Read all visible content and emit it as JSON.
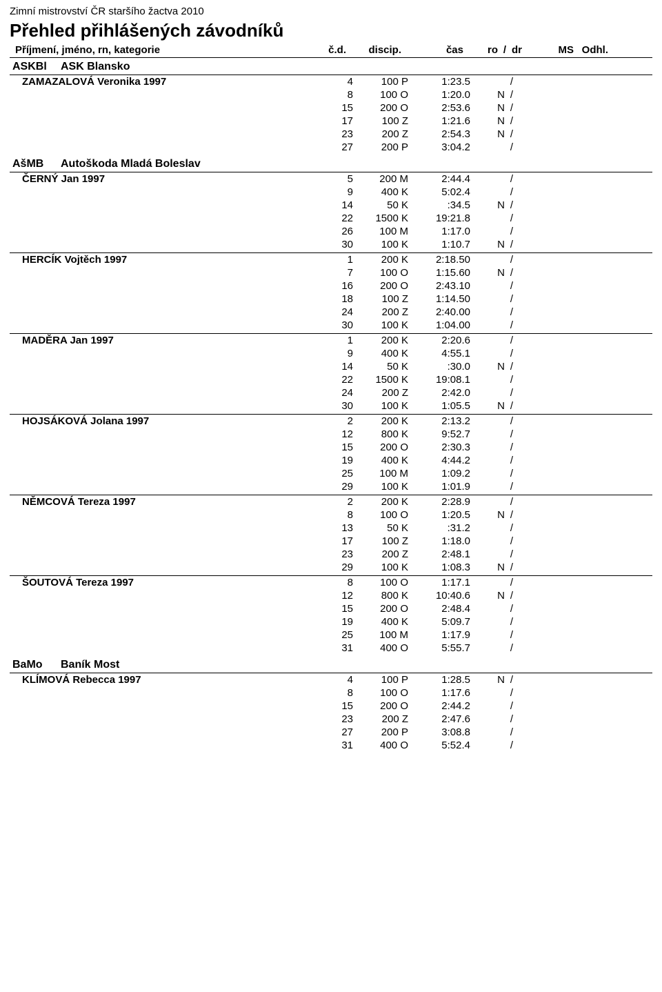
{
  "event_name": "Zimní mistrovství ČR staršího žactva 2010",
  "page_title": "Přehled přihlášených závodníků",
  "columns": {
    "name": "Příjmení, jméno, rn, kategorie",
    "cd": "č.d.",
    "discip": "discip.",
    "time": "čas",
    "ro": "ro",
    "slash": "/",
    "dr": "dr",
    "ms": "MS",
    "odhl": "Odhl."
  },
  "clubs": [
    {
      "code": "ASKBl",
      "name": "ASK Blansko",
      "athletes": [
        {
          "name": "ZAMAZALOVÁ Veronika 1997",
          "results": [
            {
              "cd": "4",
              "disc": "100 P",
              "time": "1:23.5",
              "ro": "",
              "dr": ""
            },
            {
              "cd": "8",
              "disc": "100 O",
              "time": "1:20.0",
              "ro": "N",
              "dr": ""
            },
            {
              "cd": "15",
              "disc": "200 O",
              "time": "2:53.6",
              "ro": "N",
              "dr": ""
            },
            {
              "cd": "17",
              "disc": "100 Z",
              "time": "1:21.6",
              "ro": "N",
              "dr": ""
            },
            {
              "cd": "23",
              "disc": "200 Z",
              "time": "2:54.3",
              "ro": "N",
              "dr": ""
            },
            {
              "cd": "27",
              "disc": "200 P",
              "time": "3:04.2",
              "ro": "",
              "dr": ""
            }
          ]
        }
      ]
    },
    {
      "code": "AšMB",
      "name": "Autoškoda Mladá Boleslav",
      "athletes": [
        {
          "name": "ČERNÝ Jan 1997",
          "results": [
            {
              "cd": "5",
              "disc": "200 M",
              "time": "2:44.4",
              "ro": "",
              "dr": ""
            },
            {
              "cd": "9",
              "disc": "400 K",
              "time": "5:02.4",
              "ro": "",
              "dr": ""
            },
            {
              "cd": "14",
              "disc": "50 K",
              "time": ":34.5",
              "ro": "N",
              "dr": ""
            },
            {
              "cd": "22",
              "disc": "1500 K",
              "time": "19:21.8",
              "ro": "",
              "dr": ""
            },
            {
              "cd": "26",
              "disc": "100 M",
              "time": "1:17.0",
              "ro": "",
              "dr": ""
            },
            {
              "cd": "30",
              "disc": "100 K",
              "time": "1:10.7",
              "ro": "N",
              "dr": ""
            }
          ]
        },
        {
          "name": "HERCÍK Vojtěch 1997",
          "results": [
            {
              "cd": "1",
              "disc": "200 K",
              "time": "2:18.50",
              "ro": "",
              "dr": ""
            },
            {
              "cd": "7",
              "disc": "100 O",
              "time": "1:15.60",
              "ro": "N",
              "dr": ""
            },
            {
              "cd": "16",
              "disc": "200 O",
              "time": "2:43.10",
              "ro": "",
              "dr": ""
            },
            {
              "cd": "18",
              "disc": "100 Z",
              "time": "1:14.50",
              "ro": "",
              "dr": ""
            },
            {
              "cd": "24",
              "disc": "200 Z",
              "time": "2:40.00",
              "ro": "",
              "dr": ""
            },
            {
              "cd": "30",
              "disc": "100 K",
              "time": "1:04.00",
              "ro": "",
              "dr": ""
            }
          ]
        },
        {
          "name": "MADĚRA Jan 1997",
          "results": [
            {
              "cd": "1",
              "disc": "200 K",
              "time": "2:20.6",
              "ro": "",
              "dr": ""
            },
            {
              "cd": "9",
              "disc": "400 K",
              "time": "4:55.1",
              "ro": "",
              "dr": ""
            },
            {
              "cd": "14",
              "disc": "50 K",
              "time": ":30.0",
              "ro": "N",
              "dr": ""
            },
            {
              "cd": "22",
              "disc": "1500 K",
              "time": "19:08.1",
              "ro": "",
              "dr": ""
            },
            {
              "cd": "24",
              "disc": "200 Z",
              "time": "2:42.0",
              "ro": "",
              "dr": ""
            },
            {
              "cd": "30",
              "disc": "100 K",
              "time": "1:05.5",
              "ro": "N",
              "dr": ""
            }
          ]
        },
        {
          "name": "HOJSÁKOVÁ Jolana 1997",
          "results": [
            {
              "cd": "2",
              "disc": "200 K",
              "time": "2:13.2",
              "ro": "",
              "dr": ""
            },
            {
              "cd": "12",
              "disc": "800 K",
              "time": "9:52.7",
              "ro": "",
              "dr": ""
            },
            {
              "cd": "15",
              "disc": "200 O",
              "time": "2:30.3",
              "ro": "",
              "dr": ""
            },
            {
              "cd": "19",
              "disc": "400 K",
              "time": "4:44.2",
              "ro": "",
              "dr": ""
            },
            {
              "cd": "25",
              "disc": "100 M",
              "time": "1:09.2",
              "ro": "",
              "dr": ""
            },
            {
              "cd": "29",
              "disc": "100 K",
              "time": "1:01.9",
              "ro": "",
              "dr": ""
            }
          ]
        },
        {
          "name": "NĚMCOVÁ Tereza 1997",
          "results": [
            {
              "cd": "2",
              "disc": "200 K",
              "time": "2:28.9",
              "ro": "",
              "dr": ""
            },
            {
              "cd": "8",
              "disc": "100 O",
              "time": "1:20.5",
              "ro": "N",
              "dr": ""
            },
            {
              "cd": "13",
              "disc": "50 K",
              "time": ":31.2",
              "ro": "",
              "dr": ""
            },
            {
              "cd": "17",
              "disc": "100 Z",
              "time": "1:18.0",
              "ro": "",
              "dr": ""
            },
            {
              "cd": "23",
              "disc": "200 Z",
              "time": "2:48.1",
              "ro": "",
              "dr": ""
            },
            {
              "cd": "29",
              "disc": "100 K",
              "time": "1:08.3",
              "ro": "N",
              "dr": ""
            }
          ]
        },
        {
          "name": "ŠOUTOVÁ Tereza 1997",
          "results": [
            {
              "cd": "8",
              "disc": "100 O",
              "time": "1:17.1",
              "ro": "",
              "dr": ""
            },
            {
              "cd": "12",
              "disc": "800 K",
              "time": "10:40.6",
              "ro": "N",
              "dr": ""
            },
            {
              "cd": "15",
              "disc": "200 O",
              "time": "2:48.4",
              "ro": "",
              "dr": ""
            },
            {
              "cd": "19",
              "disc": "400 K",
              "time": "5:09.7",
              "ro": "",
              "dr": ""
            },
            {
              "cd": "25",
              "disc": "100 M",
              "time": "1:17.9",
              "ro": "",
              "dr": ""
            },
            {
              "cd": "31",
              "disc": "400 O",
              "time": "5:55.7",
              "ro": "",
              "dr": ""
            }
          ]
        }
      ]
    },
    {
      "code": "BaMo",
      "name": "Baník Most",
      "athletes": [
        {
          "name": "KLÍMOVÁ Rebecca 1997",
          "results": [
            {
              "cd": "4",
              "disc": "100 P",
              "time": "1:28.5",
              "ro": "N",
              "dr": ""
            },
            {
              "cd": "8",
              "disc": "100 O",
              "time": "1:17.6",
              "ro": "",
              "dr": ""
            },
            {
              "cd": "15",
              "disc": "200 O",
              "time": "2:44.2",
              "ro": "",
              "dr": ""
            },
            {
              "cd": "23",
              "disc": "200 Z",
              "time": "2:47.6",
              "ro": "",
              "dr": ""
            },
            {
              "cd": "27",
              "disc": "200 P",
              "time": "3:08.8",
              "ro": "",
              "dr": ""
            },
            {
              "cd": "31",
              "disc": "400 O",
              "time": "5:52.4",
              "ro": "",
              "dr": ""
            }
          ]
        }
      ]
    }
  ]
}
